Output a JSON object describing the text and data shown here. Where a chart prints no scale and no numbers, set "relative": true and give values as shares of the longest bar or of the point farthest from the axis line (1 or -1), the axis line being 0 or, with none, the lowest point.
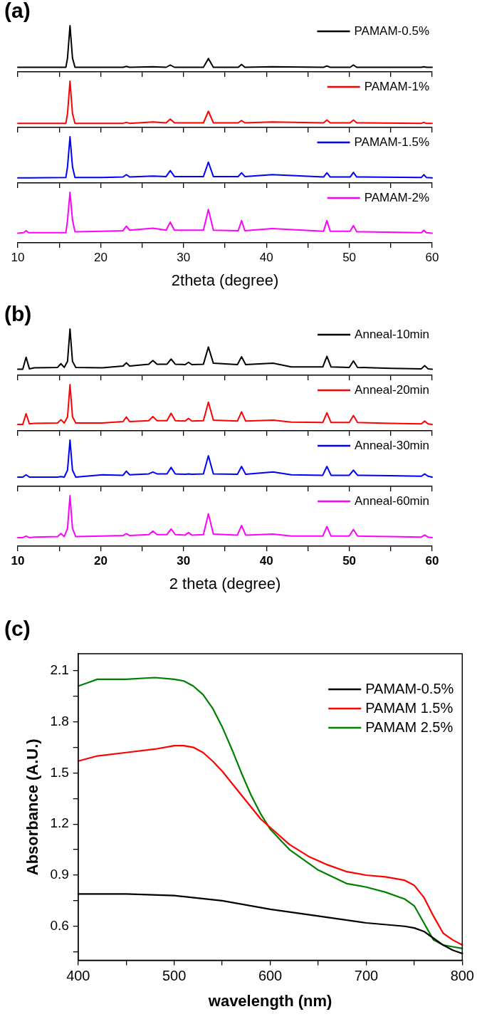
{
  "chart_data": [
    {
      "type": "line",
      "title": "(a)",
      "relative": true,
      "xlim": [
        10,
        60
      ],
      "xticks": [
        10,
        {
          "value": 15,
          "label": null
        },
        20,
        {
          "value": 25,
          "label": null
        },
        30,
        {
          "value": 35,
          "label": null
        },
        40,
        {
          "value": 45,
          "label": null
        },
        50,
        {
          "value": 55,
          "label": null
        },
        60
      ],
      "tick_labels": false,
      "legend": "top right",
      "marker": "none",
      "series": [
        {
          "name": "PAMAM-0.5%",
          "color": "#000000",
          "x": [
            10,
            10.7,
            11.0,
            11.3,
            15.8,
            16.0,
            16.3,
            16.6,
            16.9,
            20.2,
            22.7,
            23.1,
            23.5,
            26.3,
            27.9,
            28.4,
            28.9,
            32.4,
            33.0,
            33.6,
            36.6,
            37.0,
            37.4,
            40.7,
            46.9,
            47.3,
            47.7,
            50.1,
            50.5,
            50.9,
            58.7,
            59.0,
            59.3,
            60
          ],
          "values": [
            0.1,
            0.1,
            0.1,
            0.1,
            0.1,
            0.3,
            1,
            0.3,
            0.1,
            0.1,
            0.1,
            0.12,
            0.1,
            0.11,
            0.1,
            0.15,
            0.1,
            0.1,
            0.29,
            0.1,
            0.1,
            0.16,
            0.1,
            0.11,
            0.1,
            0.13,
            0.1,
            0.1,
            0.15,
            0.1,
            0.1,
            0.11,
            0.1,
            0.1
          ]
        }
      ]
    },
    {
      "type": "line",
      "relative": true,
      "xlim": [
        10,
        60
      ],
      "xticks": [
        10,
        {
          "value": 15,
          "label": null
        },
        20,
        {
          "value": 25,
          "label": null
        },
        30,
        {
          "value": 35,
          "label": null
        },
        40,
        {
          "value": 45,
          "label": null
        },
        50,
        {
          "value": 55,
          "label": null
        },
        60
      ],
      "tick_labels": false,
      "legend": "top right",
      "marker": "none",
      "series": [
        {
          "name": "PAMAM-1%",
          "color": "#ff0000",
          "x": [
            10,
            10.7,
            11.0,
            11.3,
            15.8,
            16.0,
            16.3,
            16.6,
            16.9,
            20.2,
            22.7,
            23.1,
            23.5,
            26.3,
            27.9,
            28.4,
            28.9,
            32.4,
            33.0,
            33.6,
            36.6,
            37.0,
            37.4,
            40.7,
            46.9,
            47.3,
            47.7,
            50.1,
            50.5,
            50.9,
            58.7,
            59.0,
            59.3,
            60
          ],
          "values": [
            0.09,
            0.09,
            0.09,
            0.09,
            0.09,
            0.3,
            1,
            0.3,
            0.09,
            0.09,
            0.09,
            0.11,
            0.09,
            0.12,
            0.1,
            0.18,
            0.1,
            0.1,
            0.35,
            0.1,
            0.1,
            0.15,
            0.1,
            0.12,
            0.1,
            0.16,
            0.1,
            0.1,
            0.16,
            0.1,
            0.09,
            0.11,
            0.09,
            0.09
          ]
        }
      ]
    },
    {
      "type": "line",
      "relative": true,
      "xlim": [
        10,
        60
      ],
      "xticks": [
        10,
        {
          "value": 15,
          "label": null
        },
        20,
        {
          "value": 25,
          "label": null
        },
        30,
        {
          "value": 35,
          "label": null
        },
        40,
        {
          "value": 45,
          "label": null
        },
        50,
        {
          "value": 55,
          "label": null
        },
        60
      ],
      "tick_labels": false,
      "legend": "top right",
      "marker": "none",
      "series": [
        {
          "name": "PAMAM-1.5%",
          "color": "#0000ff",
          "x": [
            10,
            10.7,
            11.0,
            11.3,
            15.8,
            16.0,
            16.3,
            16.6,
            16.9,
            20.2,
            22.7,
            23.1,
            23.5,
            26.3,
            27.9,
            28.4,
            28.9,
            32.4,
            33.0,
            33.6,
            36.6,
            37.0,
            37.4,
            40.7,
            46.9,
            47.3,
            47.7,
            50.1,
            50.5,
            50.9,
            58.7,
            59.0,
            59.3,
            60
          ],
          "values": [
            0.11,
            0.11,
            0.11,
            0.11,
            0.12,
            0.35,
            1,
            0.35,
            0.12,
            0.12,
            0.13,
            0.18,
            0.13,
            0.15,
            0.14,
            0.27,
            0.14,
            0.14,
            0.45,
            0.14,
            0.14,
            0.22,
            0.14,
            0.18,
            0.13,
            0.22,
            0.13,
            0.13,
            0.23,
            0.13,
            0.12,
            0.18,
            0.12,
            0.11
          ]
        }
      ]
    },
    {
      "type": "line",
      "relative": true,
      "xlabel": "2theta (degree)",
      "xlim": [
        10,
        60
      ],
      "xticks": [
        10,
        {
          "value": 15,
          "label": null
        },
        20,
        {
          "value": 25,
          "label": null
        },
        30,
        {
          "value": 35,
          "label": null
        },
        40,
        {
          "value": 45,
          "label": null
        },
        50,
        {
          "value": 55,
          "label": null
        },
        60
      ],
      "tick_labels": "x",
      "legend": "top right",
      "marker": "none",
      "series": [
        {
          "name": "PAMAM-2%",
          "color": "#ff00ff",
          "x": [
            10,
            10.7,
            11.0,
            11.3,
            15.8,
            16.0,
            16.3,
            16.6,
            16.9,
            20.2,
            22.7,
            23.1,
            23.5,
            26.3,
            27.9,
            28.4,
            28.9,
            32.4,
            33.0,
            33.6,
            36.6,
            37.0,
            37.4,
            40.7,
            46.9,
            47.3,
            47.7,
            50.1,
            50.5,
            50.9,
            58.7,
            59.0,
            59.3,
            60
          ],
          "values": [
            0.19,
            0.2,
            0.24,
            0.2,
            0.2,
            0.45,
            1,
            0.45,
            0.22,
            0.23,
            0.24,
            0.33,
            0.25,
            0.29,
            0.25,
            0.41,
            0.25,
            0.25,
            0.66,
            0.25,
            0.24,
            0.44,
            0.24,
            0.28,
            0.23,
            0.44,
            0.23,
            0.23,
            0.34,
            0.22,
            0.2,
            0.25,
            0.2,
            0.19
          ]
        }
      ]
    },
    {
      "type": "line",
      "title": "(b)",
      "relative": true,
      "xlim": [
        10,
        60
      ],
      "xticks": [
        10,
        {
          "value": 15,
          "label": null
        },
        20,
        {
          "value": 25,
          "label": null
        },
        30,
        {
          "value": 35,
          "label": null
        },
        40,
        {
          "value": 45,
          "label": null
        },
        50,
        {
          "value": 55,
          "label": null
        },
        60
      ],
      "tick_labels": false,
      "legend": "top right",
      "marker": "none",
      "series": [
        {
          "name": "Anneal-10min",
          "color": "#000000",
          "x": [
            10,
            10.6,
            11.0,
            11.4,
            12.0,
            14.8,
            15.2,
            15.6,
            16.0,
            16.3,
            16.6,
            17.0,
            20.2,
            22.7,
            23.1,
            23.5,
            25.8,
            26.3,
            26.8,
            28.0,
            28.5,
            29.0,
            30.2,
            30.6,
            31.0,
            32.4,
            33.0,
            33.6,
            36.5,
            37.0,
            37.5,
            40.8,
            43,
            46.8,
            47.3,
            47.8,
            50.0,
            50.5,
            51.0,
            55,
            58.7,
            59.1,
            59.5,
            60
          ],
          "values": [
            0.13,
            0.13,
            0.39,
            0.14,
            0.16,
            0.17,
            0.25,
            0.17,
            0.3,
            1,
            0.3,
            0.17,
            0.16,
            0.2,
            0.27,
            0.2,
            0.24,
            0.32,
            0.24,
            0.24,
            0.35,
            0.24,
            0.23,
            0.28,
            0.23,
            0.24,
            0.61,
            0.26,
            0.23,
            0.4,
            0.23,
            0.26,
            0.18,
            0.18,
            0.41,
            0.18,
            0.17,
            0.31,
            0.17,
            0.15,
            0.14,
            0.21,
            0.14,
            0.13
          ]
        }
      ]
    },
    {
      "type": "line",
      "relative": true,
      "xlim": [
        10,
        60
      ],
      "xticks": [
        10,
        {
          "value": 15,
          "label": null
        },
        20,
        {
          "value": 25,
          "label": null
        },
        30,
        {
          "value": 35,
          "label": null
        },
        40,
        {
          "value": 45,
          "label": null
        },
        50,
        {
          "value": 55,
          "label": null
        },
        60
      ],
      "tick_labels": false,
      "legend": "top right",
      "marker": "none",
      "series": [
        {
          "name": "Anneal-20min",
          "color": "#ff0000",
          "x": [
            10,
            10.6,
            11.0,
            11.4,
            12.0,
            14.8,
            15.2,
            15.6,
            16.0,
            16.3,
            16.6,
            17.0,
            20.2,
            22.7,
            23.1,
            23.5,
            25.8,
            26.3,
            26.8,
            28.0,
            28.5,
            29.0,
            30.2,
            30.6,
            31.0,
            32.4,
            33.0,
            33.6,
            36.5,
            37.0,
            37.5,
            40.8,
            43,
            46.8,
            47.3,
            47.8,
            50.0,
            50.5,
            51.0,
            55,
            58.7,
            59.1,
            59.5,
            60
          ],
          "values": [
            0.14,
            0.14,
            0.37,
            0.15,
            0.16,
            0.17,
            0.24,
            0.17,
            0.3,
            1,
            0.3,
            0.17,
            0.17,
            0.2,
            0.3,
            0.2,
            0.22,
            0.31,
            0.22,
            0.22,
            0.38,
            0.22,
            0.21,
            0.27,
            0.21,
            0.22,
            0.62,
            0.23,
            0.21,
            0.41,
            0.21,
            0.23,
            0.19,
            0.18,
            0.39,
            0.18,
            0.18,
            0.33,
            0.18,
            0.16,
            0.15,
            0.21,
            0.15,
            0.14
          ]
        }
      ]
    },
    {
      "type": "line",
      "relative": true,
      "xlim": [
        10,
        60
      ],
      "xticks": [
        10,
        {
          "value": 15,
          "label": null
        },
        20,
        {
          "value": 25,
          "label": null
        },
        30,
        {
          "value": 35,
          "label": null
        },
        40,
        {
          "value": 45,
          "label": null
        },
        50,
        {
          "value": 55,
          "label": null
        },
        60
      ],
      "tick_labels": false,
      "legend": "top right",
      "marker": "none",
      "series": [
        {
          "name": "Anneal-30min",
          "color": "#0000ff",
          "x": [
            10,
            10.6,
            11.0,
            11.4,
            12.0,
            14.8,
            15.2,
            15.6,
            16.0,
            16.3,
            16.6,
            17.0,
            20.2,
            22.7,
            23.1,
            23.5,
            25.8,
            26.3,
            26.8,
            28.0,
            28.5,
            29.0,
            30.2,
            30.6,
            31.0,
            32.4,
            33.0,
            33.6,
            36.5,
            37.0,
            37.5,
            40.8,
            43,
            46.8,
            47.3,
            47.8,
            50.0,
            50.5,
            51.0,
            55,
            58.7,
            59.1,
            59.5,
            60
          ],
          "values": [
            0.2,
            0.2,
            0.25,
            0.2,
            0.2,
            0.2,
            0.21,
            0.2,
            0.35,
            1,
            0.35,
            0.2,
            0.25,
            0.24,
            0.33,
            0.25,
            0.27,
            0.31,
            0.27,
            0.27,
            0.41,
            0.27,
            0.26,
            0.27,
            0.26,
            0.27,
            0.66,
            0.27,
            0.26,
            0.43,
            0.26,
            0.31,
            0.25,
            0.24,
            0.43,
            0.24,
            0.24,
            0.35,
            0.24,
            0.23,
            0.22,
            0.27,
            0.22,
            0.2
          ]
        }
      ]
    },
    {
      "type": "line",
      "relative": true,
      "xlabel": "2 theta (degree)",
      "xlim": [
        10,
        60
      ],
      "xticks": [
        10,
        {
          "value": 15,
          "label": null
        },
        20,
        {
          "value": 25,
          "label": null
        },
        30,
        {
          "value": 35,
          "label": null
        },
        40,
        {
          "value": 45,
          "label": null
        },
        50,
        {
          "value": 55,
          "label": null
        },
        60
      ],
      "tick_labels": "x",
      "legend": "top right",
      "marker": "none",
      "series": [
        {
          "name": "Anneal-60min",
          "color": "#ff00ff",
          "x": [
            10,
            10.6,
            11.0,
            11.4,
            12.0,
            14.8,
            15.2,
            15.6,
            16.0,
            16.3,
            16.6,
            17.0,
            20.2,
            22.7,
            23.1,
            23.5,
            25.8,
            26.3,
            26.8,
            28.0,
            28.5,
            29.0,
            30.2,
            30.6,
            31.0,
            32.4,
            33.0,
            33.6,
            36.5,
            37.0,
            37.5,
            40.8,
            43,
            46.8,
            47.3,
            47.8,
            50.0,
            50.5,
            51.0,
            55,
            58.7,
            59.1,
            59.5,
            60
          ],
          "values": [
            0.17,
            0.17,
            0.2,
            0.17,
            0.18,
            0.19,
            0.25,
            0.19,
            0.35,
            1,
            0.35,
            0.19,
            0.2,
            0.21,
            0.25,
            0.21,
            0.23,
            0.3,
            0.23,
            0.23,
            0.34,
            0.23,
            0.22,
            0.27,
            0.22,
            0.23,
            0.64,
            0.24,
            0.22,
            0.41,
            0.22,
            0.24,
            0.2,
            0.2,
            0.39,
            0.2,
            0.2,
            0.33,
            0.2,
            0.19,
            0.18,
            0.22,
            0.18,
            0.17
          ]
        }
      ]
    },
    {
      "type": "line",
      "title": "(c)",
      "xlabel": "wavelength (nm)",
      "ylabel": "Absorbance (A.U.)",
      "xlim": [
        400,
        800
      ],
      "ylim": [
        0.4,
        2.2
      ],
      "xticks": [
        400,
        {
          "value": 450,
          "label": null
        },
        500,
        {
          "value": 550,
          "label": null
        },
        600,
        {
          "value": 650,
          "label": null
        },
        700,
        {
          "value": 750,
          "label": null
        },
        800
      ],
      "yticks": [
        {
          "value": 0.45,
          "label": null
        },
        0.6,
        {
          "value": 0.75,
          "label": null
        },
        0.9,
        {
          "value": 1.05,
          "label": null
        },
        1.2,
        {
          "value": 1.35,
          "label": null
        },
        1.5,
        {
          "value": 1.65,
          "label": null
        },
        1.8,
        {
          "value": 1.95,
          "label": null
        },
        2.1
      ],
      "legend": "top right",
      "marker": "none",
      "series": [
        {
          "name": "PAMAM-0.5%",
          "color": "#000000",
          "x": [
            400,
            450,
            500,
            550,
            600,
            650,
            700,
            740,
            750,
            760,
            770,
            780,
            790,
            800
          ],
          "values": [
            0.79,
            0.79,
            0.78,
            0.75,
            0.7,
            0.66,
            0.62,
            0.6,
            0.59,
            0.57,
            0.53,
            0.49,
            0.46,
            0.44
          ]
        },
        {
          "name": "PAMAM 1.5%",
          "color": "#ff0000",
          "x": [
            400,
            420,
            450,
            480,
            500,
            510,
            520,
            530,
            540,
            550,
            560,
            570,
            580,
            590,
            600,
            620,
            640,
            660,
            680,
            700,
            720,
            740,
            750,
            760,
            770,
            780,
            790,
            800
          ],
          "values": [
            1.57,
            1.6,
            1.62,
            1.64,
            1.66,
            1.66,
            1.65,
            1.62,
            1.57,
            1.51,
            1.44,
            1.37,
            1.3,
            1.23,
            1.18,
            1.08,
            1.01,
            0.96,
            0.92,
            0.9,
            0.89,
            0.87,
            0.84,
            0.77,
            0.66,
            0.56,
            0.52,
            0.49
          ]
        },
        {
          "name": "PAMAM 2.5%",
          "color": "#008000",
          "x": [
            400,
            410,
            420,
            450,
            480,
            500,
            510,
            520,
            530,
            540,
            550,
            560,
            570,
            580,
            590,
            600,
            620,
            650,
            680,
            700,
            720,
            740,
            750,
            760,
            770,
            780,
            790,
            800
          ],
          "values": [
            2.01,
            2.03,
            2.05,
            2.05,
            2.06,
            2.05,
            2.04,
            2.01,
            1.96,
            1.88,
            1.77,
            1.64,
            1.5,
            1.37,
            1.26,
            1.17,
            1.05,
            0.93,
            0.85,
            0.83,
            0.8,
            0.76,
            0.72,
            0.62,
            0.52,
            0.49,
            0.48,
            0.47
          ]
        }
      ]
    }
  ]
}
